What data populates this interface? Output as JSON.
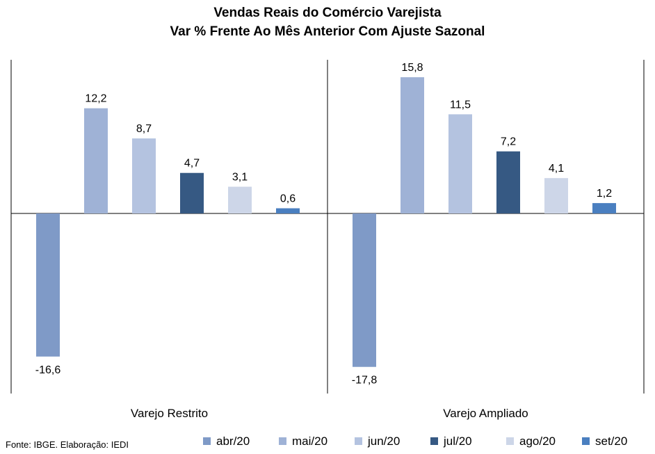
{
  "title": "Vendas Reais do Comércio Varejista",
  "subtitle": "Var % Frente Ao Mês Anterior Com Ajuste Sazonal",
  "source": "Fonte: IBGE. Elaboração: IEDI",
  "chart_data": {
    "type": "bar",
    "title": "Vendas Reais do Comércio Varejista",
    "subtitle": "Var % Frente Ao Mês Anterior Com Ajuste Sazonal",
    "categories": [
      "Varejo Restrito",
      "Varejo Ampliado"
    ],
    "series": [
      {
        "name": "abr/20",
        "values": [
          -16.6,
          -17.8
        ],
        "labels": [
          "-16,6",
          "-17,8"
        ],
        "color": "#7f9ac7"
      },
      {
        "name": "mai/20",
        "values": [
          12.2,
          15.8
        ],
        "labels": [
          "12,2",
          "15,8"
        ],
        "color": "#9fb2d6"
      },
      {
        "name": "jun/20",
        "values": [
          8.7,
          11.5
        ],
        "labels": [
          "8,7",
          "11,5"
        ],
        "color": "#b4c3e0"
      },
      {
        "name": "jul/20",
        "values": [
          4.7,
          7.2
        ],
        "labels": [
          "4,7",
          "7,2"
        ],
        "color": "#365983"
      },
      {
        "name": "ago/20",
        "values": [
          3.1,
          4.1
        ],
        "labels": [
          "3,1",
          "4,1"
        ],
        "color": "#cdd6e8"
      },
      {
        "name": "set/20",
        "values": [
          0.6,
          1.2
        ],
        "labels": [
          "0,6",
          "1,2"
        ],
        "color": "#4a7fc0"
      }
    ],
    "legend": "bottom",
    "grid": false
  }
}
